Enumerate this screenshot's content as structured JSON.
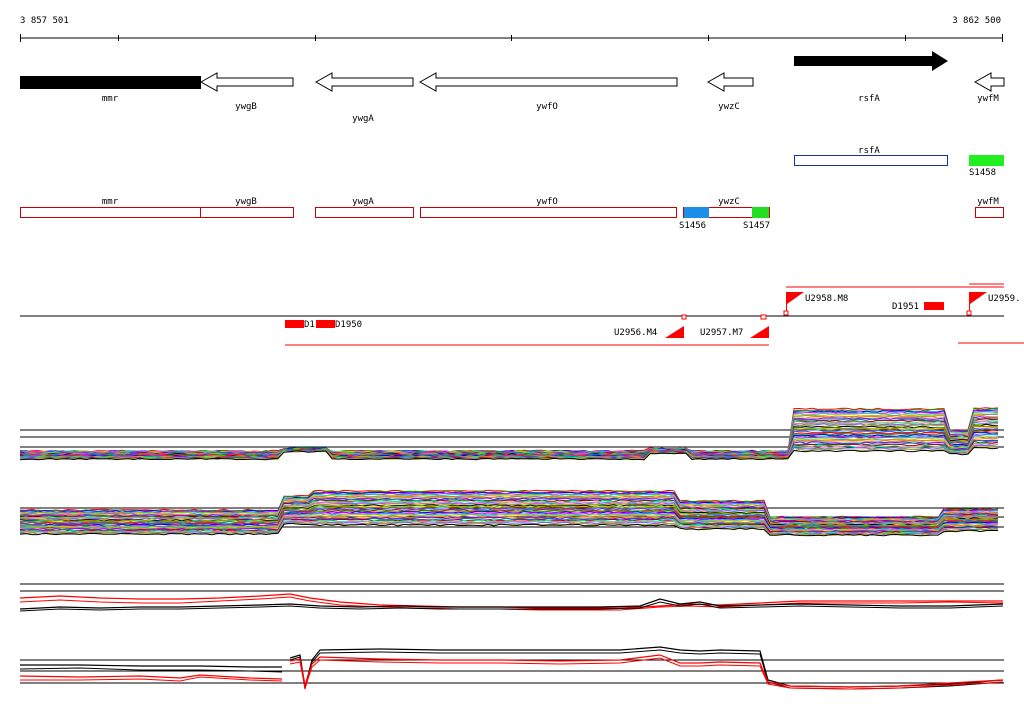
{
  "coordinates": {
    "start": "3 857 501",
    "end": "3 862 500"
  },
  "genes": [
    {
      "name": "mmr",
      "strand": "+",
      "filled": true
    },
    {
      "name": "ywgB",
      "strand": "-",
      "filled": false
    },
    {
      "name": "ywgA",
      "strand": "-",
      "filled": false
    },
    {
      "name": "ywfO",
      "strand": "-",
      "filled": false
    },
    {
      "name": "ywzC",
      "strand": "-",
      "filled": false
    },
    {
      "name": "rsfA",
      "strand": "+",
      "filled": true
    },
    {
      "name": "ywfM",
      "strand": "-",
      "filled": false
    }
  ],
  "sites": [
    {
      "label": "rsfA",
      "kind": "box",
      "color": "#1f2ea8"
    },
    {
      "label": "S1458",
      "kind": "fill",
      "color": "#22ee22"
    },
    {
      "label": "S1456",
      "kind": "fill",
      "color": "#1e8fe8"
    },
    {
      "label": "S1457",
      "kind": "fill",
      "color": "#22dd22"
    }
  ],
  "annotated_genes": [
    "mmr",
    "ywgB",
    "ywgA",
    "ywfO",
    "ywzC",
    "ywfM"
  ],
  "upstream_features": [
    {
      "label": "D1",
      "color": "#ff0000"
    },
    {
      "label": "D1950",
      "color": "#ff0000"
    },
    {
      "label": "U2956.M4",
      "color": "#ff0000"
    },
    {
      "label": "U2957.M7",
      "color": "#ff0000"
    },
    {
      "label": "U2958.M8",
      "color": "#ff0000"
    },
    {
      "label": "D1951",
      "color": "#ff0000"
    },
    {
      "label": "U2959.",
      "color": "#ff0000"
    }
  ],
  "colors": {
    "gene_outline": "#000000",
    "annotation_outline": "#cc0000",
    "feature_red": "#ff0000"
  }
}
